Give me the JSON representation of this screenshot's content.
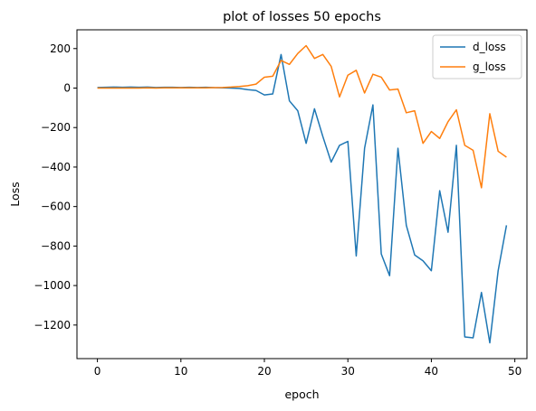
{
  "chart_data": {
    "type": "line",
    "title": "plot of losses 50 epochs",
    "xlabel": "epoch",
    "ylabel": "Loss",
    "xlim": [
      -2.45,
      51.45
    ],
    "ylim": [
      -1370,
      295
    ],
    "xticks": [
      0,
      10,
      20,
      30,
      40,
      50
    ],
    "yticks": [
      -1200,
      -1000,
      -800,
      -600,
      -400,
      -200,
      0,
      200
    ],
    "grid": false,
    "legend_position": "top-right",
    "x": [
      0,
      1,
      2,
      3,
      4,
      5,
      6,
      7,
      8,
      9,
      10,
      11,
      12,
      13,
      14,
      15,
      16,
      17,
      18,
      19,
      20,
      21,
      22,
      23,
      24,
      25,
      26,
      27,
      28,
      29,
      30,
      31,
      32,
      33,
      34,
      35,
      36,
      37,
      38,
      39,
      40,
      41,
      42,
      43,
      44,
      45,
      46,
      47,
      48,
      49
    ],
    "series": [
      {
        "name": "d_loss",
        "color": "#1f77b4",
        "values": [
          3,
          4,
          5,
          4,
          5,
          4,
          5,
          3,
          4,
          4,
          3,
          4,
          3,
          4,
          2,
          1,
          0,
          -2,
          -8,
          -12,
          -35,
          -30,
          170,
          -65,
          -115,
          -280,
          -105,
          -245,
          -375,
          -290,
          -270,
          -850,
          -305,
          -85,
          -840,
          -950,
          -305,
          -695,
          -845,
          -875,
          -925,
          -520,
          -730,
          -290,
          -1260,
          -1265,
          -1035,
          -1290,
          -925,
          -695
        ]
      },
      {
        "name": "g_loss",
        "color": "#ff7f0e",
        "values": [
          0,
          0,
          0,
          0,
          0,
          0,
          1,
          0,
          1,
          1,
          1,
          1,
          1,
          1,
          2,
          3,
          5,
          8,
          12,
          20,
          55,
          60,
          140,
          120,
          175,
          215,
          150,
          170,
          110,
          -45,
          65,
          90,
          -25,
          70,
          55,
          -10,
          -5,
          -125,
          -115,
          -280,
          -220,
          -255,
          -170,
          -110,
          -290,
          -315,
          -505,
          -130,
          -320,
          -350
        ]
      }
    ]
  }
}
